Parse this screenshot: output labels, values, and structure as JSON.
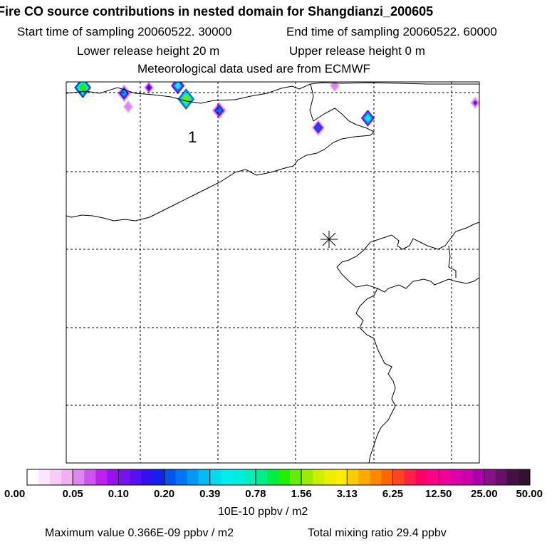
{
  "header": {
    "title": "Fire CO source contributions in nested domain for Shangdianzi_200605",
    "start_time": "Start time of sampling 20060522. 30000",
    "end_time": "End time of sampling 20060522. 60000",
    "lower_height": "Lower release height   20 m",
    "upper_height": "Upper release height    0 m",
    "met_data": "Meteorological data used are from ECMWF"
  },
  "chart_data": {
    "type": "heatmap",
    "title": "Fire CO source contributions in nested domain for Shangdianzi_200605",
    "map_label": "1",
    "receptor_marker": "station",
    "legend": {
      "units": "10E-10 ppbv / m2",
      "tick_labels": [
        "0.00",
        "0.05",
        "0.10",
        "0.20",
        "0.39",
        "0.78",
        "1.56",
        "3.13",
        "6.25",
        "12.50",
        "25.00",
        "50.00"
      ],
      "colors": [
        "#ffffff",
        "#fde6fd",
        "#f8ccf8",
        "#f0b0f2",
        "#dd88ee",
        "#cc55ee",
        "#bb22ee",
        "#9911ee",
        "#7711ee",
        "#5511ee",
        "#3311ee",
        "#1122ee",
        "#0055ee",
        "#0077f0",
        "#0099f2",
        "#00bbf4",
        "#00ddee",
        "#00eeee",
        "#00eedd",
        "#00eebb",
        "#00ee88",
        "#00ee44",
        "#22ee00",
        "#66ee00",
        "#99ee00",
        "#ccee00",
        "#eeee00",
        "#ffee00",
        "#ffcc00",
        "#ffaa00",
        "#ff8800",
        "#ff6600",
        "#ff4422",
        "#ff2244",
        "#ff0066",
        "#ff0088",
        "#ee0099",
        "#dd00aa",
        "#cc00aa",
        "#aa00aa",
        "#881188",
        "#661166",
        "#441144",
        "#331133"
      ]
    },
    "hotspots": [
      {
        "lon": 0.04,
        "lat": 0.985,
        "value": 1.2
      },
      {
        "lon": 0.14,
        "lat": 0.97,
        "value": 0.3
      },
      {
        "lon": 0.2,
        "lat": 0.985,
        "value": 0.15
      },
      {
        "lon": 0.27,
        "lat": 0.99,
        "value": 0.5
      },
      {
        "lon": 0.29,
        "lat": 0.955,
        "value": 1.4
      },
      {
        "lon": 0.37,
        "lat": 0.925,
        "value": 0.25
      },
      {
        "lon": 0.15,
        "lat": 0.935,
        "value": 0.05
      },
      {
        "lon": 0.61,
        "lat": 0.88,
        "value": 0.2
      },
      {
        "lon": 0.73,
        "lat": 0.905,
        "value": 0.6
      },
      {
        "lon": 0.99,
        "lat": 0.945,
        "value": 0.12
      },
      {
        "lon": 0.65,
        "lat": 0.99,
        "value": 0.05
      }
    ]
  },
  "footer": {
    "max_value": "Maximum value  0.366E-09 ppbv / m2",
    "total_mixing": "Total mixing ratio       29.4 ppbv"
  }
}
